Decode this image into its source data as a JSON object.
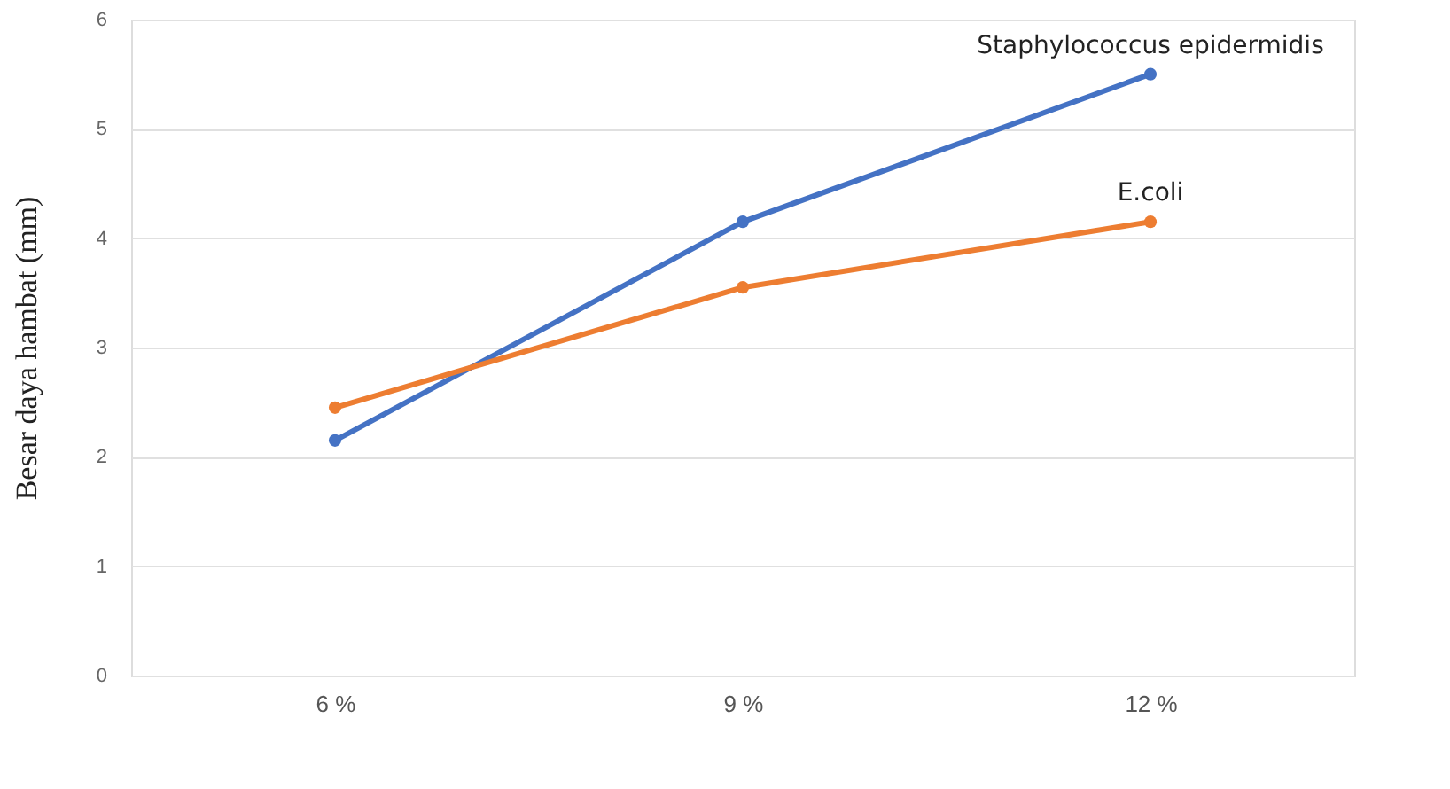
{
  "chart_data": {
    "type": "line",
    "ylabel": "Besar daya hambat (mm)",
    "categories": [
      "6 %",
      "9 %",
      "12 %"
    ],
    "series": [
      {
        "name": "Staphylococcus epidermidis",
        "color": "#4472c4",
        "values": [
          2.15,
          4.15,
          5.5
        ]
      },
      {
        "name": "E.coli",
        "color": "#ed7d31",
        "values": [
          2.45,
          3.55,
          4.15
        ]
      }
    ],
    "ylim": [
      0,
      6
    ],
    "yticks": [
      0,
      1,
      2,
      3,
      4,
      5,
      6
    ],
    "grid": "y",
    "marker": "circle",
    "line_style": "solid",
    "legend": false
  }
}
